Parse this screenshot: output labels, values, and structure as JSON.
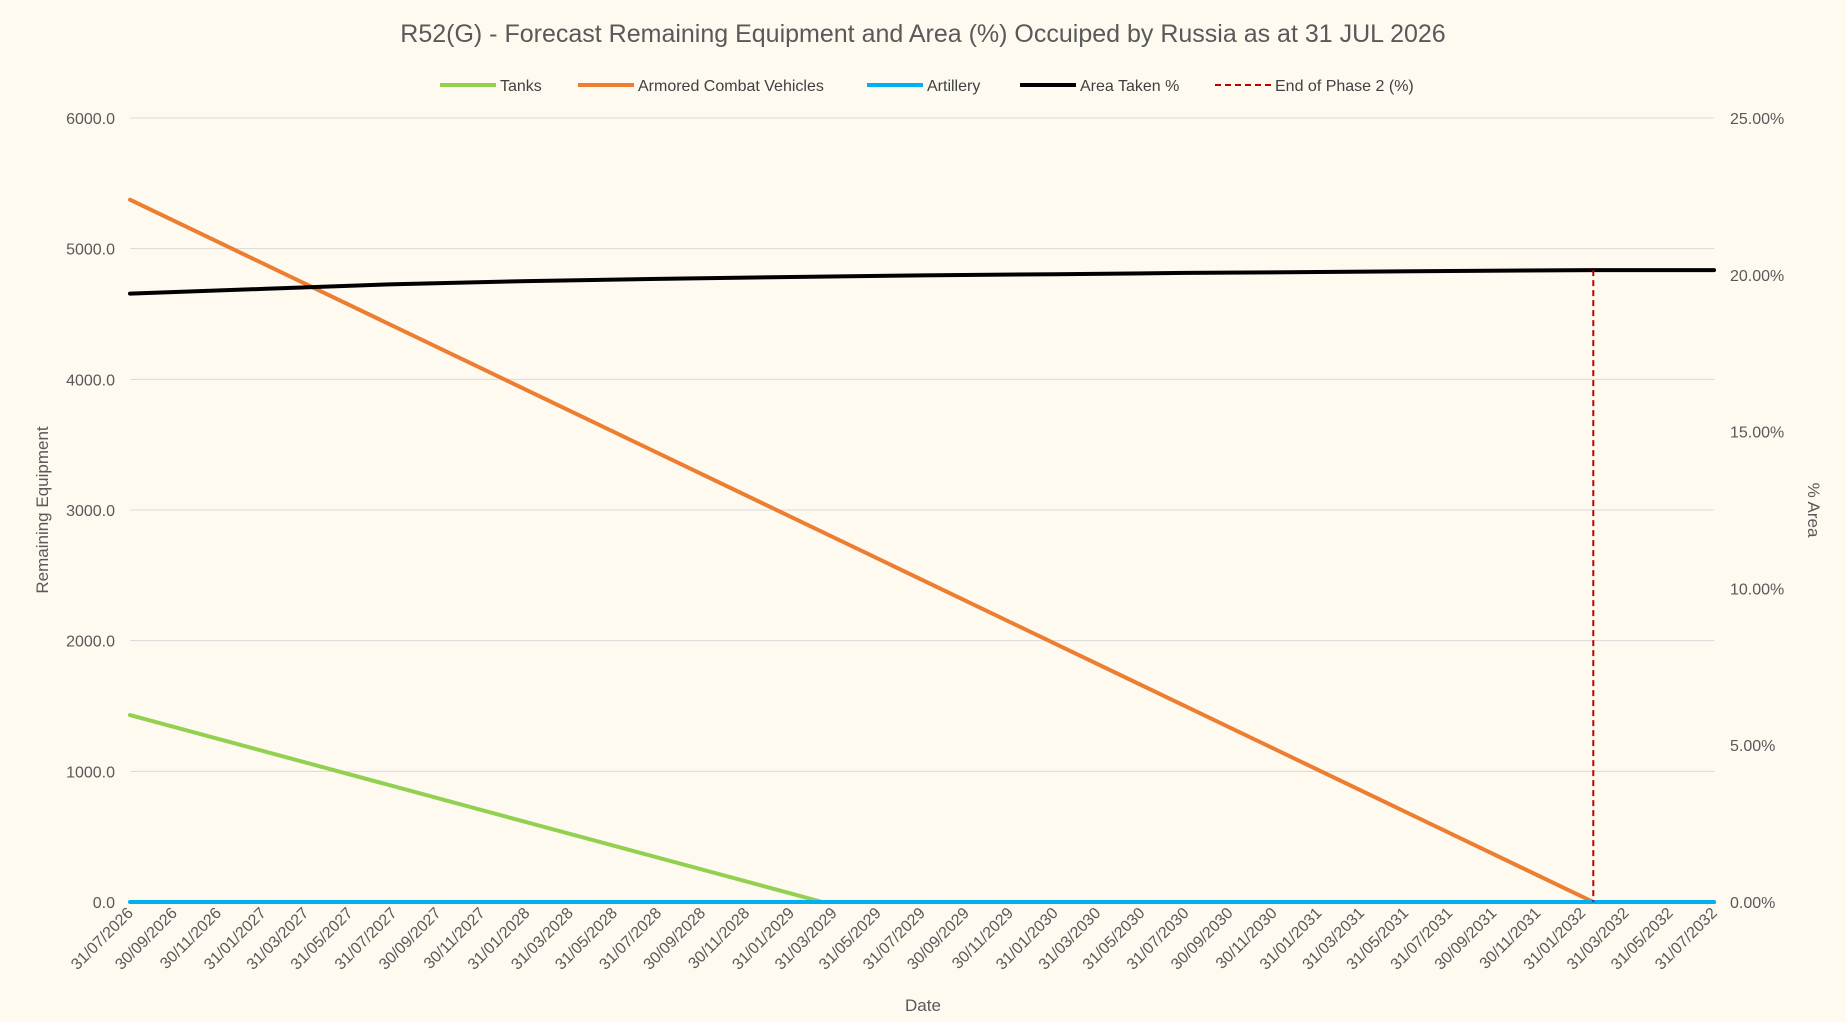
{
  "chart_data": {
    "type": "line",
    "title": "R52(G) - Forecast Remaining Equipment and Area (%) Occuiped by Russia as at 31 JUL 2026",
    "xlabel": "Date",
    "ylabel": "Remaining Equipment",
    "y2label": "% Area",
    "ylim": [
      0,
      6000
    ],
    "y2lim": [
      0,
      25
    ],
    "yticks": [
      "6000.0",
      "5000.0",
      "4000.0",
      "3000.0",
      "2000.0",
      "1000.0",
      "0.0"
    ],
    "y2ticks": [
      "25.00%",
      "20.00%",
      "15.00%",
      "10.00%",
      "5.00%",
      "0.00%"
    ],
    "xticks": [
      "31/07/2026",
      "30/09/2026",
      "30/11/2026",
      "31/01/2027",
      "31/03/2027",
      "31/05/2027",
      "31/07/2027",
      "30/09/2027",
      "30/11/2027",
      "31/01/2028",
      "31/03/2028",
      "31/05/2028",
      "31/07/2028",
      "30/09/2028",
      "30/11/2028",
      "31/01/2029",
      "31/03/2029",
      "31/05/2029",
      "31/07/2029",
      "30/09/2029",
      "30/11/2029",
      "31/01/2030",
      "31/03/2030",
      "31/05/2030",
      "31/07/2030",
      "30/09/2030",
      "30/11/2030",
      "31/01/2031",
      "31/03/2031",
      "31/05/2031",
      "31/07/2031",
      "30/09/2031",
      "30/11/2031",
      "31/01/2032",
      "31/03/2032",
      "31/05/2032",
      "31/07/2032"
    ],
    "grid": true,
    "legend_position": "top",
    "series": [
      {
        "name": "Tanks",
        "axis": "left",
        "color": "#92d050",
        "style": "solid",
        "points": [
          {
            "x": "31/07/2026",
            "y": 1430
          },
          {
            "x": "15/03/2029",
            "y": 0
          },
          {
            "x": "31/07/2032",
            "y": 0
          }
        ]
      },
      {
        "name": "Armored Combat Vehicles",
        "axis": "left",
        "color": "#ed7d31",
        "style": "solid",
        "points": [
          {
            "x": "31/07/2026",
            "y": 5375
          },
          {
            "x": "15/02/2032",
            "y": 0
          },
          {
            "x": "31/07/2032",
            "y": 0
          }
        ]
      },
      {
        "name": "Artillery",
        "axis": "left",
        "color": "#00b0f0",
        "style": "solid",
        "points": [
          {
            "x": "31/07/2026",
            "y": 0
          },
          {
            "x": "31/07/2032",
            "y": 0
          }
        ]
      },
      {
        "name": "Area Taken %",
        "axis": "right",
        "color": "#000000",
        "style": "solid",
        "points": [
          {
            "x": "31/07/2026",
            "y": 19.4
          },
          {
            "x": "31/01/2027",
            "y": 19.55
          },
          {
            "x": "31/07/2027",
            "y": 19.7
          },
          {
            "x": "31/01/2028",
            "y": 19.8
          },
          {
            "x": "31/07/2028",
            "y": 19.87
          },
          {
            "x": "31/01/2029",
            "y": 19.93
          },
          {
            "x": "31/07/2029",
            "y": 19.98
          },
          {
            "x": "31/01/2030",
            "y": 20.02
          },
          {
            "x": "31/07/2030",
            "y": 20.06
          },
          {
            "x": "31/01/2031",
            "y": 20.09
          },
          {
            "x": "31/07/2031",
            "y": 20.12
          },
          {
            "x": "15/02/2032",
            "y": 20.15
          },
          {
            "x": "31/07/2032",
            "y": 20.15
          }
        ]
      },
      {
        "name": "End of Phase 2 (%)",
        "axis": "right",
        "color": "#c00000",
        "style": "dashed",
        "points": [
          {
            "x": "15/02/2032",
            "y": 20.15
          },
          {
            "x": "15/02/2032",
            "y": 0
          }
        ]
      }
    ]
  }
}
